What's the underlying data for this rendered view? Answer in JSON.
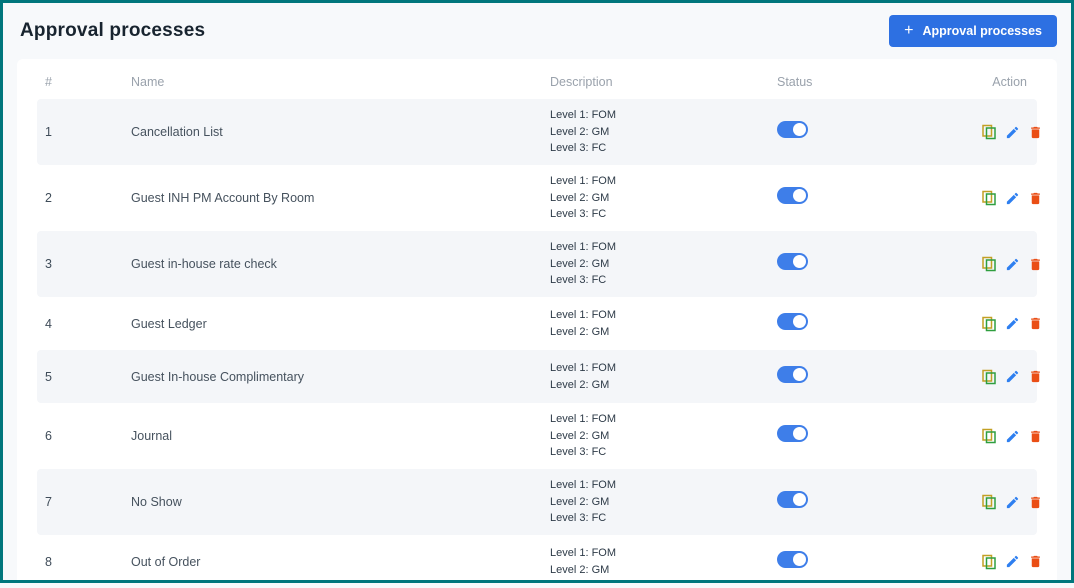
{
  "page": {
    "title": "Approval processes"
  },
  "toolbar": {
    "add_button_label": "Approval processes",
    "add_button_icon": "+"
  },
  "table": {
    "columns": [
      "#",
      "Name",
      "Description",
      "Status",
      "Action"
    ],
    "action_icons": [
      "copy",
      "edit",
      "delete"
    ],
    "rows": [
      {
        "num": "1",
        "name": "Cancellation List",
        "levels": [
          "Level 1: FOM",
          "Level 2: GM",
          "Level 3: FC"
        ],
        "status_on": true
      },
      {
        "num": "2",
        "name": "Guest INH PM Account By Room",
        "levels": [
          "Level 1: FOM",
          "Level 2: GM",
          "Level 3: FC"
        ],
        "status_on": true
      },
      {
        "num": "3",
        "name": "Guest in-house rate check",
        "levels": [
          "Level 1: FOM",
          "Level 2: GM",
          "Level 3: FC"
        ],
        "status_on": true
      },
      {
        "num": "4",
        "name": "Guest Ledger",
        "levels": [
          "Level 1: FOM",
          "Level 2: GM"
        ],
        "status_on": true
      },
      {
        "num": "5",
        "name": "Guest In-house Complimentary",
        "levels": [
          "Level 1: FOM",
          "Level 2: GM"
        ],
        "status_on": true
      },
      {
        "num": "6",
        "name": "Journal",
        "levels": [
          "Level 1: FOM",
          "Level 2: GM",
          "Level 3: FC"
        ],
        "status_on": true
      },
      {
        "num": "7",
        "name": "No Show",
        "levels": [
          "Level 1: FOM",
          "Level 2: GM",
          "Level 3: FC"
        ],
        "status_on": true
      },
      {
        "num": "8",
        "name": "Out of Order",
        "levels": [
          "Level 1: FOM",
          "Level 2: GM"
        ],
        "status_on": true
      }
    ]
  },
  "colors": {
    "border_teal": "#00767c",
    "page_bg": "#f7f9fb",
    "accent_blue": "#2d70e2",
    "toggle_blue": "#3e7ee9",
    "row_stripe": "#f4f6f9",
    "copy_green": "#2f9e3f",
    "copy_back_yellow": "#c2a024",
    "edit_blue": "#2e7ff0",
    "delete_orange": "#ea4e15"
  }
}
